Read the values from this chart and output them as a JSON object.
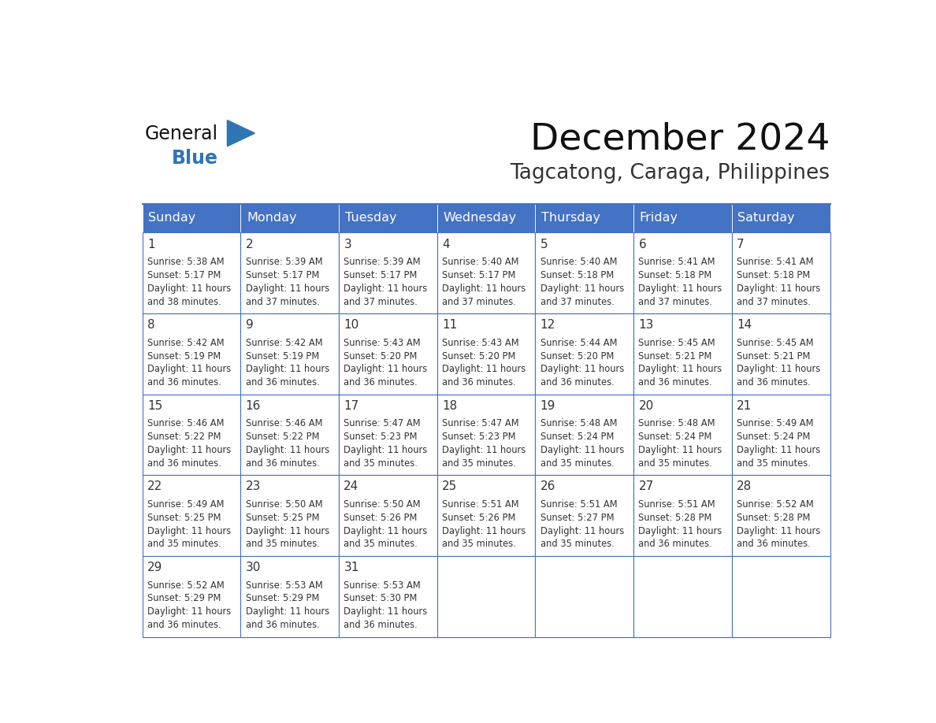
{
  "title": "December 2024",
  "subtitle": "Tagcatong, Caraga, Philippines",
  "header_bg": "#4472C4",
  "header_text": "#FFFFFF",
  "cell_bg": "#FFFFFF",
  "cell_border": "#4472C4",
  "day_number_color": "#333333",
  "cell_text_color": "#333333",
  "days_of_week": [
    "Sunday",
    "Monday",
    "Tuesday",
    "Wednesday",
    "Thursday",
    "Friday",
    "Saturday"
  ],
  "logo_general_color": "#222222",
  "logo_blue_color": "#2E75B6",
  "calendar_data": [
    [
      {
        "day": 1,
        "sunrise": "5:38 AM",
        "sunset": "5:17 PM",
        "daylight_hours": 11,
        "daylight_minutes": 38
      },
      {
        "day": 2,
        "sunrise": "5:39 AM",
        "sunset": "5:17 PM",
        "daylight_hours": 11,
        "daylight_minutes": 37
      },
      {
        "day": 3,
        "sunrise": "5:39 AM",
        "sunset": "5:17 PM",
        "daylight_hours": 11,
        "daylight_minutes": 37
      },
      {
        "day": 4,
        "sunrise": "5:40 AM",
        "sunset": "5:17 PM",
        "daylight_hours": 11,
        "daylight_minutes": 37
      },
      {
        "day": 5,
        "sunrise": "5:40 AM",
        "sunset": "5:18 PM",
        "daylight_hours": 11,
        "daylight_minutes": 37
      },
      {
        "day": 6,
        "sunrise": "5:41 AM",
        "sunset": "5:18 PM",
        "daylight_hours": 11,
        "daylight_minutes": 37
      },
      {
        "day": 7,
        "sunrise": "5:41 AM",
        "sunset": "5:18 PM",
        "daylight_hours": 11,
        "daylight_minutes": 37
      }
    ],
    [
      {
        "day": 8,
        "sunrise": "5:42 AM",
        "sunset": "5:19 PM",
        "daylight_hours": 11,
        "daylight_minutes": 36
      },
      {
        "day": 9,
        "sunrise": "5:42 AM",
        "sunset": "5:19 PM",
        "daylight_hours": 11,
        "daylight_minutes": 36
      },
      {
        "day": 10,
        "sunrise": "5:43 AM",
        "sunset": "5:20 PM",
        "daylight_hours": 11,
        "daylight_minutes": 36
      },
      {
        "day": 11,
        "sunrise": "5:43 AM",
        "sunset": "5:20 PM",
        "daylight_hours": 11,
        "daylight_minutes": 36
      },
      {
        "day": 12,
        "sunrise": "5:44 AM",
        "sunset": "5:20 PM",
        "daylight_hours": 11,
        "daylight_minutes": 36
      },
      {
        "day": 13,
        "sunrise": "5:45 AM",
        "sunset": "5:21 PM",
        "daylight_hours": 11,
        "daylight_minutes": 36
      },
      {
        "day": 14,
        "sunrise": "5:45 AM",
        "sunset": "5:21 PM",
        "daylight_hours": 11,
        "daylight_minutes": 36
      }
    ],
    [
      {
        "day": 15,
        "sunrise": "5:46 AM",
        "sunset": "5:22 PM",
        "daylight_hours": 11,
        "daylight_minutes": 36
      },
      {
        "day": 16,
        "sunrise": "5:46 AM",
        "sunset": "5:22 PM",
        "daylight_hours": 11,
        "daylight_minutes": 36
      },
      {
        "day": 17,
        "sunrise": "5:47 AM",
        "sunset": "5:23 PM",
        "daylight_hours": 11,
        "daylight_minutes": 35
      },
      {
        "day": 18,
        "sunrise": "5:47 AM",
        "sunset": "5:23 PM",
        "daylight_hours": 11,
        "daylight_minutes": 35
      },
      {
        "day": 19,
        "sunrise": "5:48 AM",
        "sunset": "5:24 PM",
        "daylight_hours": 11,
        "daylight_minutes": 35
      },
      {
        "day": 20,
        "sunrise": "5:48 AM",
        "sunset": "5:24 PM",
        "daylight_hours": 11,
        "daylight_minutes": 35
      },
      {
        "day": 21,
        "sunrise": "5:49 AM",
        "sunset": "5:24 PM",
        "daylight_hours": 11,
        "daylight_minutes": 35
      }
    ],
    [
      {
        "day": 22,
        "sunrise": "5:49 AM",
        "sunset": "5:25 PM",
        "daylight_hours": 11,
        "daylight_minutes": 35
      },
      {
        "day": 23,
        "sunrise": "5:50 AM",
        "sunset": "5:25 PM",
        "daylight_hours": 11,
        "daylight_minutes": 35
      },
      {
        "day": 24,
        "sunrise": "5:50 AM",
        "sunset": "5:26 PM",
        "daylight_hours": 11,
        "daylight_minutes": 35
      },
      {
        "day": 25,
        "sunrise": "5:51 AM",
        "sunset": "5:26 PM",
        "daylight_hours": 11,
        "daylight_minutes": 35
      },
      {
        "day": 26,
        "sunrise": "5:51 AM",
        "sunset": "5:27 PM",
        "daylight_hours": 11,
        "daylight_minutes": 35
      },
      {
        "day": 27,
        "sunrise": "5:51 AM",
        "sunset": "5:28 PM",
        "daylight_hours": 11,
        "daylight_minutes": 36
      },
      {
        "day": 28,
        "sunrise": "5:52 AM",
        "sunset": "5:28 PM",
        "daylight_hours": 11,
        "daylight_minutes": 36
      }
    ],
    [
      {
        "day": 29,
        "sunrise": "5:52 AM",
        "sunset": "5:29 PM",
        "daylight_hours": 11,
        "daylight_minutes": 36
      },
      {
        "day": 30,
        "sunrise": "5:53 AM",
        "sunset": "5:29 PM",
        "daylight_hours": 11,
        "daylight_minutes": 36
      },
      {
        "day": 31,
        "sunrise": "5:53 AM",
        "sunset": "5:30 PM",
        "daylight_hours": 11,
        "daylight_minutes": 36
      },
      null,
      null,
      null,
      null
    ]
  ]
}
